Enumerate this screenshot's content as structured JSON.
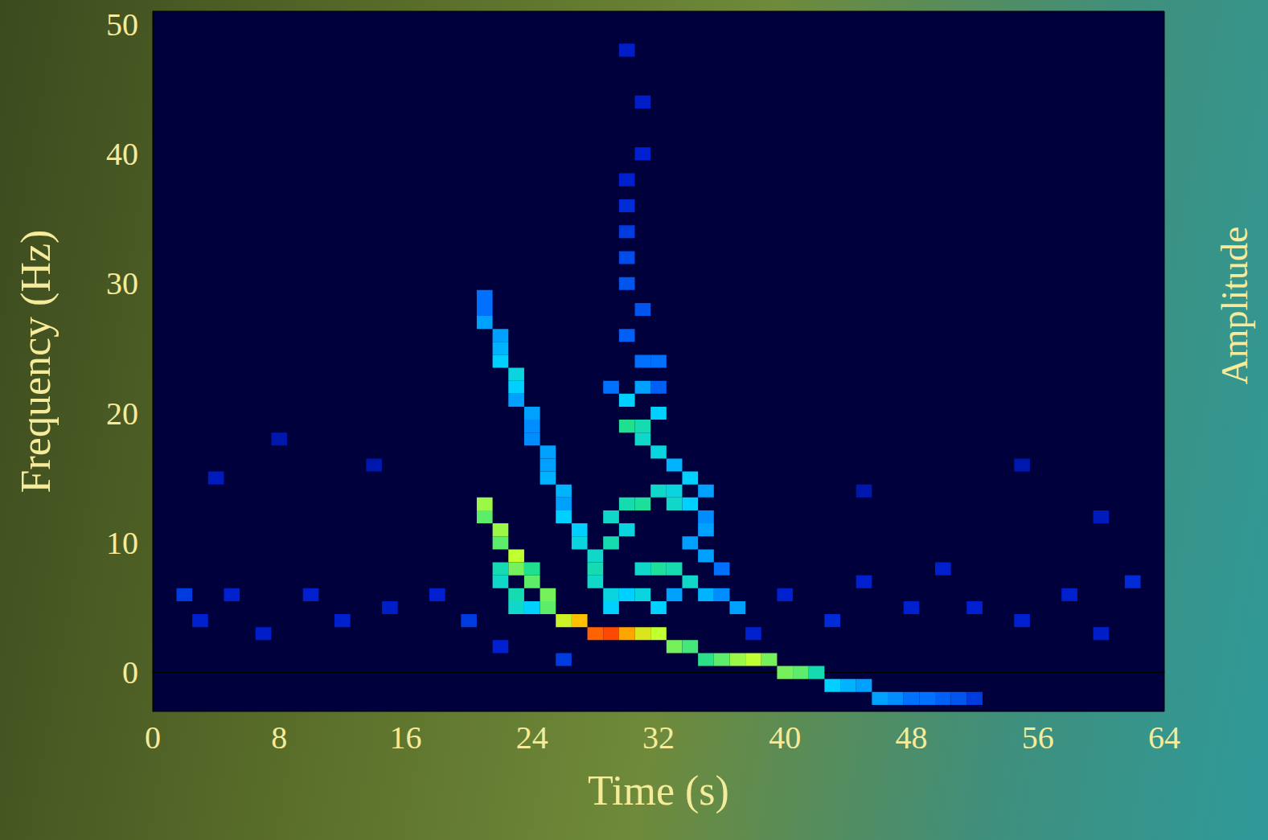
{
  "chart_data": {
    "type": "heatmap",
    "x_label": "Time (s)",
    "y_label": "Frequency (Hz)",
    "colorbar_label": "Amplitude",
    "xlim": [
      0,
      64
    ],
    "xticks": [
      0,
      8,
      16,
      24,
      32,
      40,
      48,
      56,
      64
    ],
    "ylim": [
      -3,
      51
    ],
    "yticks": [
      0,
      10,
      20,
      30,
      40,
      50
    ],
    "time_bin": 1,
    "frequency_bin": 1,
    "color_range": [
      0,
      1
    ],
    "cells": [
      [
        21,
        13,
        0.75
      ],
      [
        21,
        12,
        0.7
      ],
      [
        22,
        11,
        0.75
      ],
      [
        22,
        10,
        0.7
      ],
      [
        23,
        9,
        0.78
      ],
      [
        23,
        8,
        0.72
      ],
      [
        24,
        7,
        0.7
      ],
      [
        25,
        6,
        0.72
      ],
      [
        25,
        5,
        0.7
      ],
      [
        26,
        4,
        0.8
      ],
      [
        27,
        4,
        0.88
      ],
      [
        28,
        3,
        0.95
      ],
      [
        29,
        3,
        0.97
      ],
      [
        30,
        3,
        0.9
      ],
      [
        31,
        3,
        0.82
      ],
      [
        32,
        3,
        0.78
      ],
      [
        33,
        2,
        0.72
      ],
      [
        34,
        2,
        0.68
      ],
      [
        35,
        1,
        0.66
      ],
      [
        36,
        1,
        0.7
      ],
      [
        37,
        1,
        0.75
      ],
      [
        38,
        1,
        0.78
      ],
      [
        39,
        1,
        0.72
      ],
      [
        40,
        0,
        0.72
      ],
      [
        41,
        0,
        0.7
      ],
      [
        42,
        0,
        0.62
      ],
      [
        43,
        -1,
        0.55
      ],
      [
        44,
        -1,
        0.52
      ],
      [
        45,
        -1,
        0.5
      ],
      [
        46,
        -2,
        0.5
      ],
      [
        47,
        -2,
        0.48
      ],
      [
        48,
        -2,
        0.45
      ],
      [
        49,
        -2,
        0.45
      ],
      [
        50,
        -2,
        0.42
      ],
      [
        51,
        -2,
        0.4
      ],
      [
        52,
        -2,
        0.35
      ],
      [
        22,
        8,
        0.62
      ],
      [
        22,
        7,
        0.6
      ],
      [
        23,
        6,
        0.62
      ],
      [
        23,
        5,
        0.6
      ],
      [
        24,
        5,
        0.55
      ],
      [
        24,
        8,
        0.65
      ],
      [
        21,
        29,
        0.45
      ],
      [
        21,
        28,
        0.45
      ],
      [
        21,
        27,
        0.5
      ],
      [
        22,
        26,
        0.5
      ],
      [
        22,
        25,
        0.52
      ],
      [
        22,
        24,
        0.55
      ],
      [
        23,
        23,
        0.58
      ],
      [
        23,
        22,
        0.55
      ],
      [
        23,
        21,
        0.5
      ],
      [
        24,
        20,
        0.5
      ],
      [
        24,
        19,
        0.48
      ],
      [
        24,
        18,
        0.48
      ],
      [
        25,
        17,
        0.5
      ],
      [
        25,
        16,
        0.5
      ],
      [
        25,
        15,
        0.52
      ],
      [
        26,
        14,
        0.52
      ],
      [
        26,
        13,
        0.5
      ],
      [
        26,
        12,
        0.55
      ],
      [
        27,
        11,
        0.55
      ],
      [
        27,
        10,
        0.58
      ],
      [
        28,
        9,
        0.6
      ],
      [
        28,
        8,
        0.62
      ],
      [
        28,
        7,
        0.6
      ],
      [
        29,
        6,
        0.58
      ],
      [
        29,
        5,
        0.55
      ],
      [
        29,
        12,
        0.6
      ],
      [
        29,
        10,
        0.62
      ],
      [
        30,
        11,
        0.58
      ],
      [
        30,
        13,
        0.62
      ],
      [
        31,
        13,
        0.64
      ],
      [
        30,
        19,
        0.65
      ],
      [
        31,
        19,
        0.62
      ],
      [
        31,
        18,
        0.6
      ],
      [
        32,
        17,
        0.58
      ],
      [
        32,
        20,
        0.55
      ],
      [
        30,
        21,
        0.55
      ],
      [
        31,
        22,
        0.5
      ],
      [
        31,
        24,
        0.45
      ],
      [
        32,
        24,
        0.45
      ],
      [
        30,
        26,
        0.42
      ],
      [
        31,
        28,
        0.4
      ],
      [
        32,
        14,
        0.6
      ],
      [
        33,
        14,
        0.58
      ],
      [
        33,
        13,
        0.6
      ],
      [
        34,
        13,
        0.55
      ],
      [
        31,
        8,
        0.6
      ],
      [
        32,
        8,
        0.64
      ],
      [
        33,
        8,
        0.62
      ],
      [
        34,
        7,
        0.6
      ],
      [
        30,
        6,
        0.55
      ],
      [
        31,
        6,
        0.58
      ],
      [
        32,
        5,
        0.55
      ],
      [
        33,
        6,
        0.5
      ],
      [
        35,
        9,
        0.5
      ],
      [
        34,
        10,
        0.5
      ],
      [
        35,
        11,
        0.5
      ],
      [
        36,
        8,
        0.45
      ],
      [
        36,
        6,
        0.48
      ],
      [
        37,
        5,
        0.5
      ],
      [
        35,
        6,
        0.52
      ],
      [
        33,
        16,
        0.52
      ],
      [
        34,
        15,
        0.55
      ],
      [
        35,
        14,
        0.5
      ],
      [
        35,
        12,
        0.48
      ],
      [
        30,
        30,
        0.4
      ],
      [
        30,
        32,
        0.38
      ],
      [
        30,
        34,
        0.35
      ],
      [
        30,
        36,
        0.32
      ],
      [
        30,
        38,
        0.3
      ],
      [
        31,
        40,
        0.3
      ],
      [
        31,
        44,
        0.28
      ],
      [
        30,
        48,
        0.28
      ],
      [
        29,
        22,
        0.45
      ],
      [
        32,
        22,
        0.42
      ],
      [
        2,
        6,
        0.35
      ],
      [
        3,
        4,
        0.3
      ],
      [
        5,
        6,
        0.3
      ],
      [
        7,
        3,
        0.28
      ],
      [
        10,
        6,
        0.3
      ],
      [
        12,
        4,
        0.3
      ],
      [
        15,
        5,
        0.28
      ],
      [
        18,
        6,
        0.3
      ],
      [
        20,
        4,
        0.35
      ],
      [
        22,
        2,
        0.3
      ],
      [
        26,
        1,
        0.35
      ],
      [
        38,
        3,
        0.3
      ],
      [
        40,
        6,
        0.3
      ],
      [
        43,
        4,
        0.32
      ],
      [
        45,
        7,
        0.3
      ],
      [
        48,
        5,
        0.3
      ],
      [
        50,
        8,
        0.3
      ],
      [
        52,
        5,
        0.3
      ],
      [
        55,
        4,
        0.3
      ],
      [
        58,
        6,
        0.3
      ],
      [
        60,
        3,
        0.28
      ],
      [
        62,
        7,
        0.32
      ],
      [
        4,
        15,
        0.25
      ],
      [
        8,
        18,
        0.22
      ],
      [
        14,
        16,
        0.22
      ],
      [
        45,
        14,
        0.22
      ],
      [
        55,
        16,
        0.22
      ],
      [
        60,
        12,
        0.25
      ]
    ]
  }
}
